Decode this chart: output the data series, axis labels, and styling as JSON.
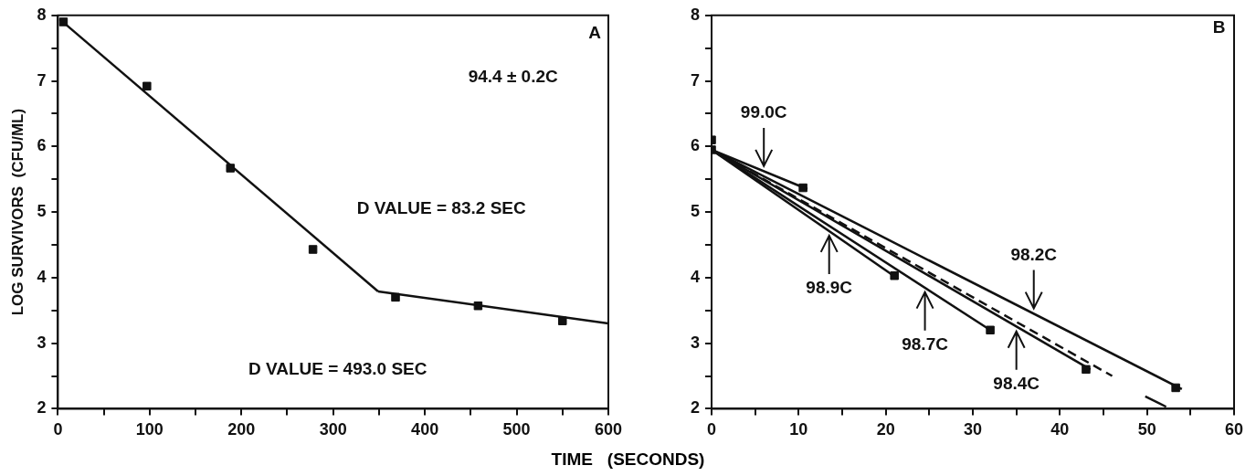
{
  "chart_data": [
    {
      "type": "scatter",
      "ylabel": "LOG SURVIVORS  (CFU/ML)",
      "xlabel": "TIME   (SECONDS)",
      "xlim": [
        0,
        600
      ],
      "ylim": [
        2,
        8
      ],
      "xticks": [
        0,
        {
          "value": 50,
          "label": null
        },
        100,
        {
          "value": 150,
          "label": null
        },
        200,
        {
          "value": 250,
          "label": null
        },
        300,
        {
          "value": 350,
          "label": null
        },
        400,
        {
          "value": 450,
          "label": null
        },
        500,
        {
          "value": 550,
          "label": null
        },
        600
      ],
      "yticks": [
        2,
        {
          "value": 2.5,
          "label": null
        },
        3,
        {
          "value": 3.5,
          "label": null
        },
        4,
        {
          "value": 4.5,
          "label": null
        },
        5,
        {
          "value": 5.5,
          "label": null
        },
        6,
        {
          "value": 6.5,
          "label": null
        },
        7,
        {
          "value": 7.5,
          "label": null
        },
        8
      ],
      "grid": false,
      "legend": false,
      "series": [
        {
          "marker": "square",
          "color": "#111111",
          "x": [
            6,
            97,
            188,
            278,
            368,
            458,
            550
          ],
          "values": [
            7.9,
            6.92,
            5.67,
            4.43,
            3.7,
            3.57,
            3.34
          ]
        },
        {
          "type": "line",
          "marker": "none",
          "color": "#111111",
          "x": [
            2,
            349
          ],
          "values": [
            7.94,
            3.79
          ]
        },
        {
          "type": "line",
          "marker": "none",
          "color": "#111111",
          "x": [
            349,
            600
          ],
          "values": [
            3.79,
            3.3
          ]
        }
      ],
      "annotations": [
        "A",
        "94.4 ± 0.2C",
        "D VALUE = 83.2 SEC",
        "D VALUE = 493.0 SEC"
      ]
    },
    {
      "type": "scatter",
      "xlim": [
        0,
        60
      ],
      "ylim": [
        2,
        8
      ],
      "xticks": [
        0,
        {
          "value": 5,
          "label": null
        },
        10,
        {
          "value": 15,
          "label": null
        },
        20,
        {
          "value": 25,
          "label": null
        },
        30,
        {
          "value": 35,
          "label": null
        },
        40,
        {
          "value": 45,
          "label": null
        },
        50,
        {
          "value": 55,
          "label": null
        },
        60
      ],
      "yticks": [
        2,
        {
          "value": 2.5,
          "label": null
        },
        3,
        {
          "value": 3.5,
          "label": null
        },
        4,
        {
          "value": 4.5,
          "label": null
        },
        5,
        {
          "value": 5.5,
          "label": null
        },
        6,
        {
          "value": 6.5,
          "label": null
        },
        7,
        {
          "value": 7.5,
          "label": null
        },
        8
      ],
      "grid": false,
      "legend": false,
      "series": [
        {
          "marker": "square",
          "color": "#111111",
          "x": [
            0,
            0,
            10.5,
            21,
            32,
            43,
            53.3
          ],
          "values": [
            6.1,
            5.95,
            5.37,
            4.03,
            3.2,
            2.6,
            2.32
          ]
        },
        {
          "type": "line",
          "marker": "none",
          "color": "#111111",
          "x": [
            0,
            11
          ],
          "values": [
            5.95,
            5.35
          ]
        },
        {
          "type": "line",
          "marker": "none",
          "color": "#111111",
          "x": [
            0,
            21
          ],
          "values": [
            5.95,
            4.02
          ]
        },
        {
          "type": "line",
          "marker": "none",
          "color": "#111111",
          "x": [
            0,
            32
          ],
          "values": [
            5.95,
            3.2
          ]
        },
        {
          "type": "line",
          "marker": "none",
          "color": "#111111",
          "x": [
            0,
            43.5
          ],
          "values": [
            5.95,
            2.6
          ]
        },
        {
          "type": "line",
          "marker": "none",
          "line_style": "dashed",
          "color": "#111111",
          "x": [
            0,
            46
          ],
          "values": [
            5.95,
            2.5
          ]
        },
        {
          "type": "line",
          "marker": "none",
          "color": "#111111",
          "x": [
            0,
            54
          ],
          "values": [
            5.95,
            2.3
          ]
        },
        {
          "type": "line",
          "marker": "none",
          "color": "#111111",
          "x": [
            49.8,
            52.2
          ],
          "values": [
            2.19,
            2.03
          ]
        }
      ],
      "annotations": [
        "B",
        {
          "text": "99.0C",
          "x": 6,
          "y": 5.63
        },
        {
          "text": "98.9C",
          "x": 13.5,
          "y": 4.71
        },
        {
          "text": "98.7C",
          "x": 24.5,
          "y": 3.85
        },
        {
          "text": "98.4C",
          "x": 35,
          "y": 3.25
        },
        {
          "text": "98.2C",
          "x": 37,
          "y": 3.46
        }
      ]
    }
  ]
}
